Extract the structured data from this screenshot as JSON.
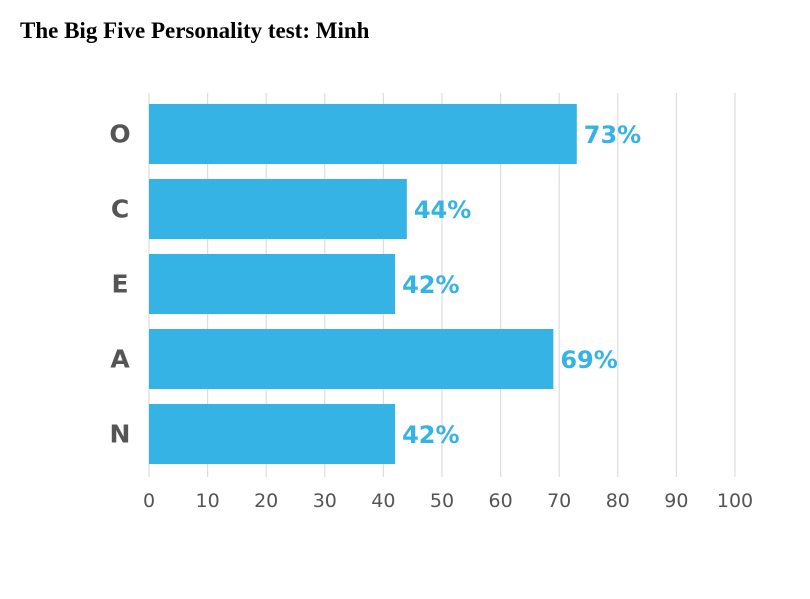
{
  "title": "The Big Five Personality test: Minh",
  "colors": {
    "bar": "#35b3e5",
    "label": "#35b3e5",
    "grid": "#dddddd",
    "text": "#555555"
  },
  "chart_data": {
    "type": "bar",
    "orientation": "horizontal",
    "title": "The Big Five Personality test: Minh",
    "xlabel": "",
    "ylabel": "",
    "categories": [
      "O",
      "C",
      "E",
      "A",
      "N"
    ],
    "values": [
      73,
      44,
      42,
      69,
      42
    ],
    "value_labels": [
      "73%",
      "44%",
      "42%",
      "69%",
      "42%"
    ],
    "xlim": [
      0,
      100
    ],
    "xticks": [
      0,
      10,
      20,
      30,
      40,
      50,
      60,
      70,
      80,
      90,
      100
    ],
    "xtick_labels": [
      "0",
      "10",
      "20",
      "30",
      "40",
      "50",
      "60",
      "70",
      "80",
      "90",
      "100"
    ],
    "grid": true,
    "legend": false
  }
}
